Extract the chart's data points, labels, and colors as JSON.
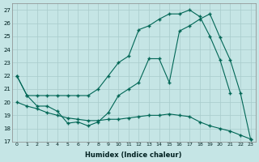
{
  "xlabel": "Humidex (Indice chaleur)",
  "bg_color": "#c5e5e5",
  "grid_color": "#a8cbcb",
  "line_color": "#006655",
  "xlim": [
    -0.5,
    23.5
  ],
  "ylim": [
    17,
    27.5
  ],
  "yticks": [
    17,
    18,
    19,
    20,
    21,
    22,
    23,
    24,
    25,
    26,
    27
  ],
  "xticks": [
    0,
    1,
    2,
    3,
    4,
    5,
    6,
    7,
    8,
    9,
    10,
    11,
    12,
    13,
    14,
    15,
    16,
    17,
    18,
    19,
    20,
    21,
    22,
    23
  ],
  "line1_x": [
    0,
    1,
    2,
    3,
    4,
    5,
    6,
    7,
    8,
    9,
    10,
    11,
    12,
    13,
    14,
    15,
    16,
    17,
    18,
    19,
    20,
    21
  ],
  "line1_y": [
    22,
    20.5,
    20.5,
    20.5,
    20.5,
    20.5,
    20.5,
    20.5,
    21.0,
    22.0,
    23.0,
    23.5,
    25.5,
    25.8,
    26.3,
    26.7,
    26.7,
    27.0,
    26.5,
    25.0,
    23.2,
    20.7
  ],
  "line2_x": [
    0,
    1,
    2,
    3,
    4,
    5,
    6,
    7,
    8,
    9,
    10,
    11,
    12,
    13,
    14,
    15,
    16,
    17,
    18,
    19,
    20,
    21,
    22,
    23
  ],
  "line2_y": [
    22,
    20.5,
    19.7,
    19.7,
    19.3,
    18.4,
    18.5,
    18.2,
    18.5,
    19.2,
    20.5,
    21.0,
    21.5,
    23.3,
    23.3,
    21.5,
    25.4,
    25.8,
    26.3,
    26.7,
    24.9,
    23.2,
    20.7,
    17.2
  ],
  "line3_x": [
    0,
    1,
    2,
    3,
    4,
    5,
    6,
    7,
    8,
    9,
    10,
    11,
    12,
    13,
    14,
    15,
    16,
    17,
    18,
    19,
    20,
    21,
    22,
    23
  ],
  "line3_y": [
    20,
    19.7,
    19.5,
    19.2,
    19.0,
    18.8,
    18.7,
    18.6,
    18.6,
    18.7,
    18.7,
    18.8,
    18.9,
    19.0,
    19.0,
    19.1,
    19.0,
    18.9,
    18.5,
    18.2,
    18.0,
    17.8,
    17.5,
    17.2
  ]
}
